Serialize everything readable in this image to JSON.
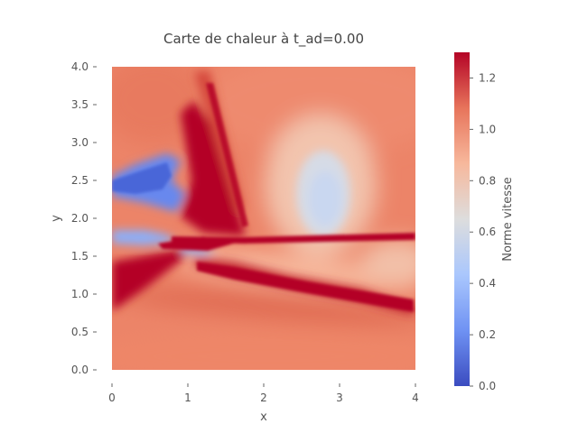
{
  "chart_data": {
    "type": "heatmap",
    "title": "Carte de chaleur à t_ad=0.00",
    "xlabel": "x",
    "ylabel": "y",
    "xlim": [
      0,
      4
    ],
    "ylim": [
      0,
      4
    ],
    "x_ticks": [
      "0",
      "1",
      "2",
      "3",
      "4"
    ],
    "y_ticks": [
      "0.0",
      "0.5",
      "1.0",
      "1.5",
      "2.0",
      "2.5",
      "3.0",
      "3.5",
      "4.0"
    ],
    "colorbar": {
      "label": "Norme vitesse",
      "range": [
        0.0,
        1.3
      ],
      "ticks": [
        "0.0",
        "0.2",
        "0.4",
        "0.6",
        "0.8",
        "1.0",
        "1.2"
      ],
      "colormap": "coolwarm",
      "colors": [
        "#3b4cc0",
        "#6f92f3",
        "#aac7fd",
        "#dddddd",
        "#f7b89c",
        "#e7745b",
        "#b40426"
      ]
    },
    "value_range": [
      0.0,
      1.3
    ],
    "grid": false
  }
}
